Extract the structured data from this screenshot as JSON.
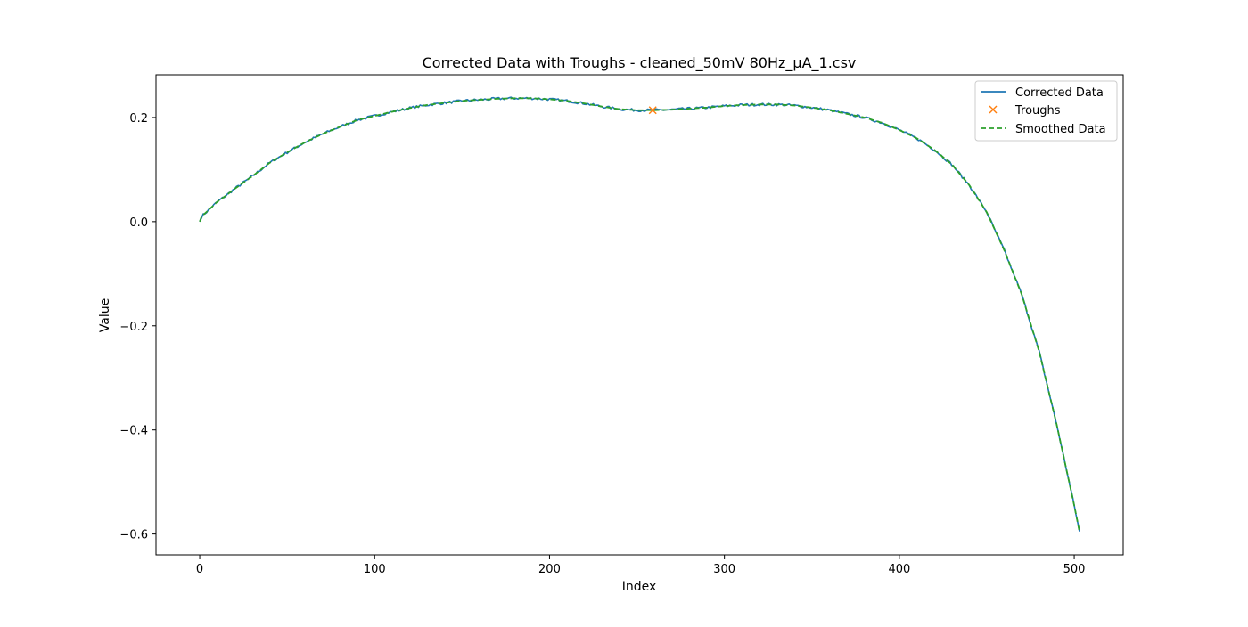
{
  "chart_data": {
    "type": "line",
    "title": "Corrected Data with Troughs - cleaned_50mV 80Hz_µA_1.csv",
    "xlabel": "Index",
    "ylabel": "Value",
    "xlim": [
      -25,
      528
    ],
    "ylim": [
      -0.64,
      0.282
    ],
    "xticks": [
      0,
      100,
      200,
      300,
      400,
      500
    ],
    "xtick_labels": [
      "0",
      "100",
      "200",
      "300",
      "400",
      "500"
    ],
    "yticks": [
      -0.6,
      -0.4,
      -0.2,
      0.0,
      0.2
    ],
    "ytick_labels": [
      "−0.6",
      "−0.4",
      "−0.2",
      "0.0",
      "0.2"
    ],
    "grid": false,
    "legend_position": "top-right",
    "legend": [
      "Corrected Data",
      "Troughs",
      "Smoothed Data"
    ],
    "colors": {
      "corrected": "#1f77b4",
      "troughs": "#ff7f0e",
      "smoothed": "#2ca02c"
    },
    "curve_knots": {
      "x": [
        0,
        1,
        2,
        5,
        10,
        15,
        20,
        25,
        30,
        40,
        50,
        60,
        70,
        80,
        90,
        100,
        110,
        120,
        130,
        140,
        150,
        160,
        170,
        180,
        190,
        200,
        210,
        220,
        230,
        240,
        250,
        260,
        270,
        280,
        290,
        300,
        310,
        320,
        330,
        340,
        350,
        360,
        370,
        380,
        390,
        400,
        410,
        420,
        430,
        440,
        450,
        460,
        470,
        480,
        490,
        500,
        503
      ],
      "y": [
        0.0,
        0.009,
        0.013,
        0.022,
        0.038,
        0.05,
        0.063,
        0.075,
        0.087,
        0.113,
        0.133,
        0.152,
        0.168,
        0.182,
        0.195,
        0.203,
        0.211,
        0.218,
        0.224,
        0.228,
        0.232,
        0.234,
        0.236,
        0.237,
        0.237,
        0.235,
        0.232,
        0.227,
        0.221,
        0.216,
        0.214,
        0.214,
        0.215,
        0.217,
        0.219,
        0.222,
        0.224,
        0.225,
        0.225,
        0.223,
        0.219,
        0.214,
        0.207,
        0.2,
        0.19,
        0.176,
        0.16,
        0.138,
        0.11,
        0.07,
        0.018,
        -0.055,
        -0.14,
        -0.25,
        -0.39,
        -0.545,
        -0.595
      ]
    },
    "noise_amplitude": 0.0025,
    "series": [
      {
        "name": "Corrected Data",
        "style": "solid"
      },
      {
        "name": "Troughs",
        "style": "marker-x",
        "points": [
          {
            "x": 259,
            "y": 0.214
          }
        ]
      },
      {
        "name": "Smoothed Data",
        "style": "dashed"
      }
    ]
  }
}
